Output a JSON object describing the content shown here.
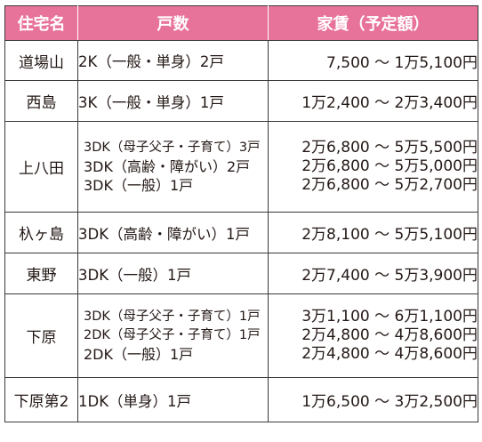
{
  "headers": {
    "name": "住宅名",
    "units": "戸数",
    "rent": "家賃（予定額）"
  },
  "rows": [
    {
      "name": "道場山",
      "units": [
        "2K（一般・単身）2戸"
      ],
      "rent": [
        "7,500 ～ 1万5,100円"
      ]
    },
    {
      "name": "西島",
      "units": [
        "3K（一般・単身）1戸"
      ],
      "rent": [
        "1万2,400 ～ 2万3,400円"
      ]
    },
    {
      "name": "上八田",
      "units": [
        "3DK（母子父子・子育て）3戸",
        "3DK（高齢・障がい）2戸",
        "3DK（一般）1戸"
      ],
      "rent": [
        "2万6,800 ～ 5万5,500円",
        "2万6,800 ～ 5万5,000円",
        "2万6,800 ～ 5万2,700円"
      ]
    },
    {
      "name": "杁ヶ島",
      "units": [
        "3DK（高齢・障がい）1戸"
      ],
      "rent": [
        "2万8,100 ～ 5万5,100円"
      ]
    },
    {
      "name": "東野",
      "units": [
        "3DK（一般）1戸"
      ],
      "rent": [
        "2万7,400 ～ 5万3,900円"
      ]
    },
    {
      "name": "下原",
      "units": [
        "3DK（母子父子・子育て）1戸",
        "2DK（母子父子・子育て）1戸",
        "2DK（一般）1戸"
      ],
      "rent": [
        "3万1,100 ～ 6万1,100円",
        "2万4,800 ～ 4万8,600円",
        "2万4,800 ～ 4万8,600円"
      ]
    },
    {
      "name": "下原第2",
      "units": [
        "1DK（単身）1戸"
      ],
      "rent": [
        "1万6,500 ～ 3万2,500円"
      ]
    }
  ],
  "colors": {
    "header_bg": "#e8739a",
    "header_text": "#ffffff",
    "border": "#3a3a3a"
  }
}
